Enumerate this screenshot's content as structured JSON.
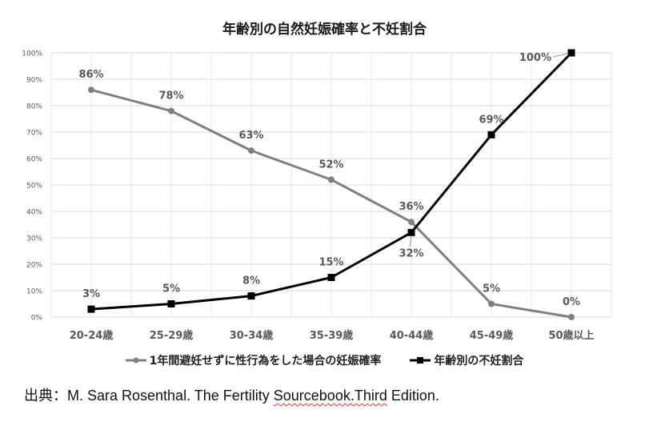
{
  "chart_data": {
    "type": "line",
    "title": "年齢別の自然妊娠確率と不妊割合",
    "xlabel": "",
    "ylabel": "",
    "categories": [
      "20-24歳",
      "25-29歳",
      "30-34歳",
      "35-39歳",
      "40-44歳",
      "45-49歳",
      "50歳以上"
    ],
    "yticks": [
      "0%",
      "10%",
      "20%",
      "30%",
      "40%",
      "50%",
      "60%",
      "70%",
      "80%",
      "90%",
      "100%"
    ],
    "ylim": [
      0,
      100
    ],
    "grid": true,
    "legend_position": "bottom",
    "series": [
      {
        "name": "1年間避妊せずに性行為をした場合の妊娠確率",
        "color": "#808080",
        "marker": "circle",
        "values": [
          86,
          78,
          63,
          52,
          36,
          5,
          0
        ],
        "labels": [
          "86%",
          "78%",
          "63%",
          "52%",
          "36%",
          "5%",
          "0%"
        ]
      },
      {
        "name": "年齢別の不妊割合",
        "color": "#000000",
        "marker": "square",
        "values": [
          3,
          5,
          8,
          15,
          32,
          69,
          100
        ],
        "labels": [
          "3%",
          "5%",
          "8%",
          "15%",
          "32%",
          "69%",
          "100%"
        ]
      }
    ]
  },
  "source_prefix": "出典：M. Sara Rosenthal. The Fertility ",
  "source_misspelled": "Sourcebook.Third",
  "source_suffix": " Edition."
}
